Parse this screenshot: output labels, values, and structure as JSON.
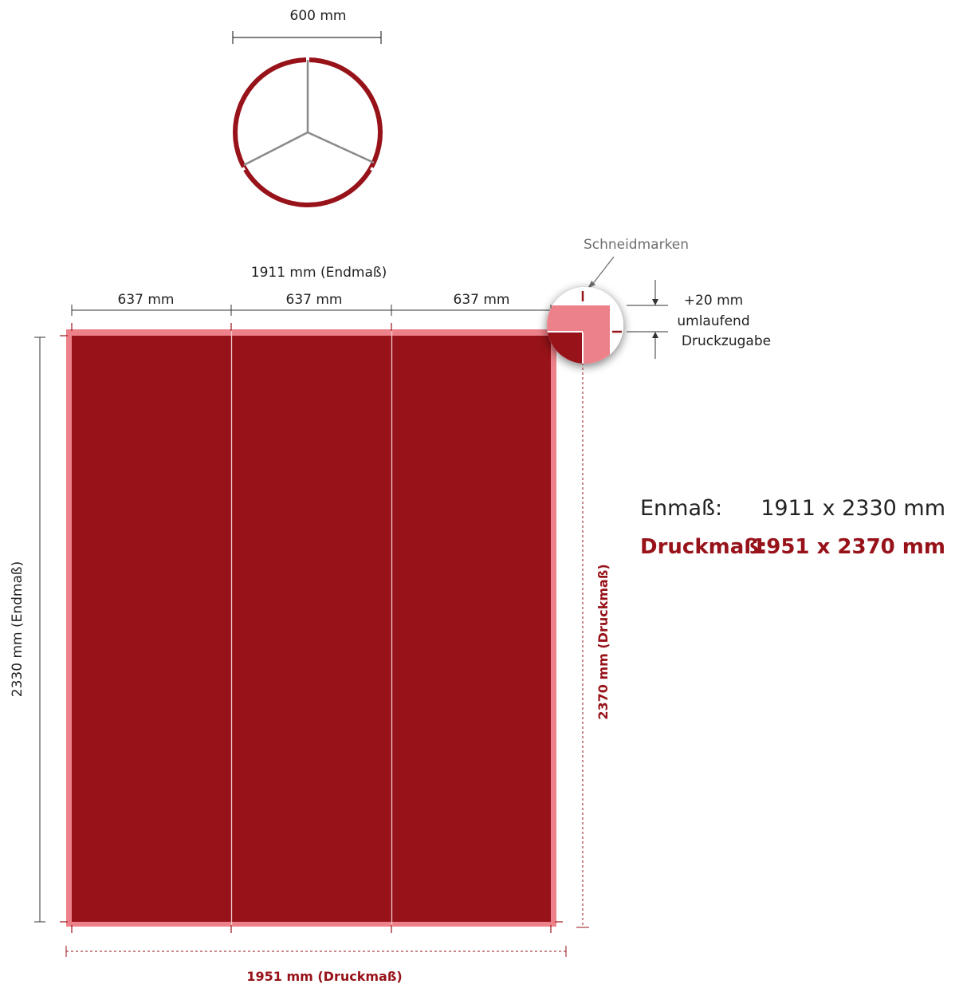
{
  "colors": {
    "accent": "#971219",
    "bleed": "#ec8189",
    "panel_divider": "#f2c9cc",
    "dimension_line": "#333333",
    "stand_legs": "#8a8a8a",
    "label_grey": "#6f6f6f"
  },
  "stand": {
    "diameter_label": "600 mm"
  },
  "banner": {
    "end_width_label": "1911 mm (Endmaß)",
    "panel_labels": [
      "637 mm",
      "637 mm",
      "637 mm"
    ],
    "end_height_label": "2330 mm (Endmaß)",
    "print_width_label": "1951 mm (Druckmaß)",
    "print_height_label": "2370 mm (Druckmaß)"
  },
  "callout": {
    "title": "Schneidmarken",
    "bleed_line1": "+20 mm",
    "bleed_line2": "umlaufend",
    "bleed_line3": "Druckzugabe"
  },
  "summary": {
    "end_label": "Enmaß:",
    "end_value": "1911 x 2330 mm",
    "print_label": "Druckmaß:",
    "print_value": "1951 x 2370 mm"
  }
}
